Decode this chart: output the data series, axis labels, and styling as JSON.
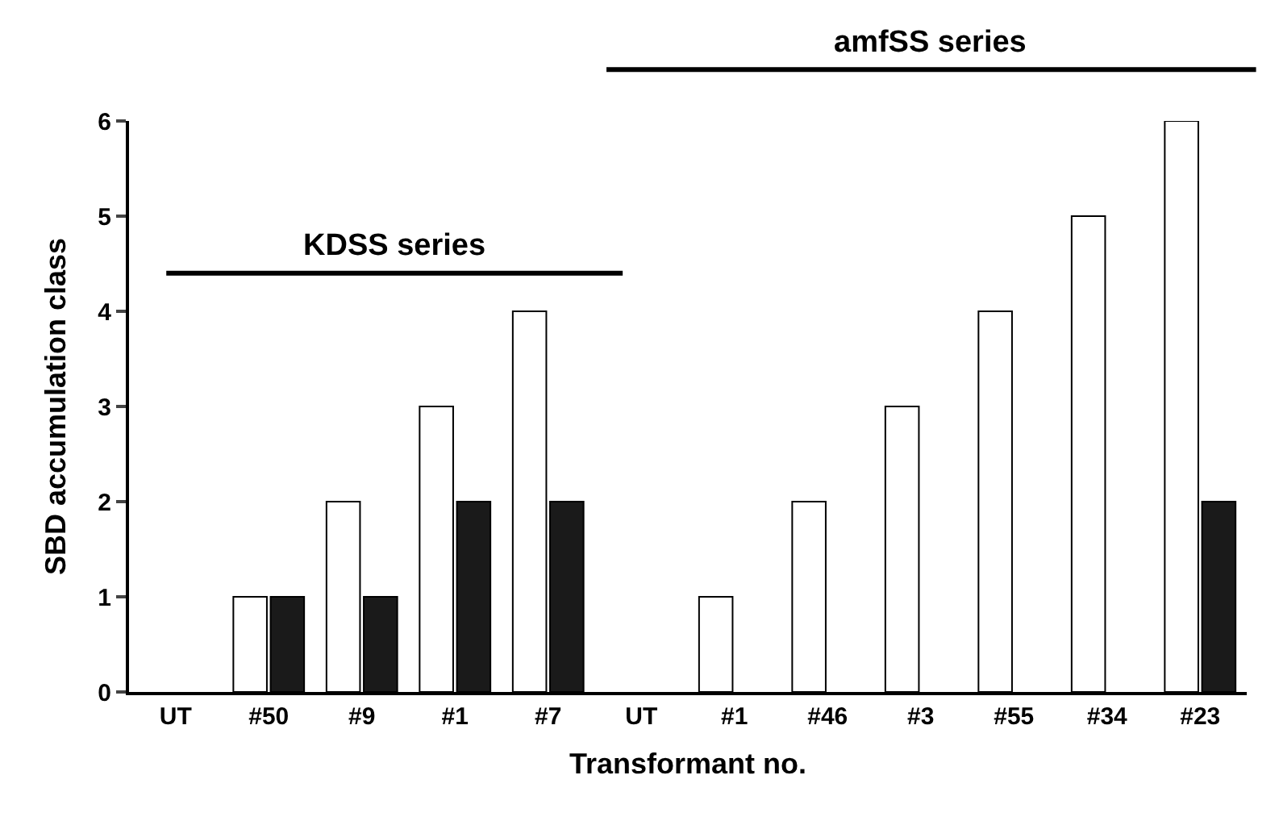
{
  "chart_data": {
    "type": "bar",
    "xlabel": "Transformant no.",
    "ylabel": "SBD accumulation class",
    "categories": [
      "UT",
      "#50",
      "#9",
      "#1",
      "#7",
      "UT",
      "#1",
      "#46",
      "#3",
      "#55",
      "#34",
      "#23"
    ],
    "series": [
      {
        "color": "#ffffff",
        "values": [
          0,
          1,
          2,
          3,
          4,
          0,
          1,
          2,
          3,
          4,
          5,
          6
        ]
      },
      {
        "color": "#1a1a1a",
        "values": [
          0,
          1,
          1,
          2,
          2,
          0,
          0,
          0,
          0,
          0,
          0,
          2
        ]
      }
    ],
    "ylim": [
      0,
      6
    ],
    "yticks": [
      0,
      1,
      2,
      3,
      4,
      5,
      6
    ],
    "ref_lines": [
      {
        "axis": "y",
        "value": 4.4,
        "label": "KDSS series",
        "color": "#000000",
        "line_style": "solid"
      }
    ],
    "annotations": [
      "amfSS series"
    ]
  }
}
